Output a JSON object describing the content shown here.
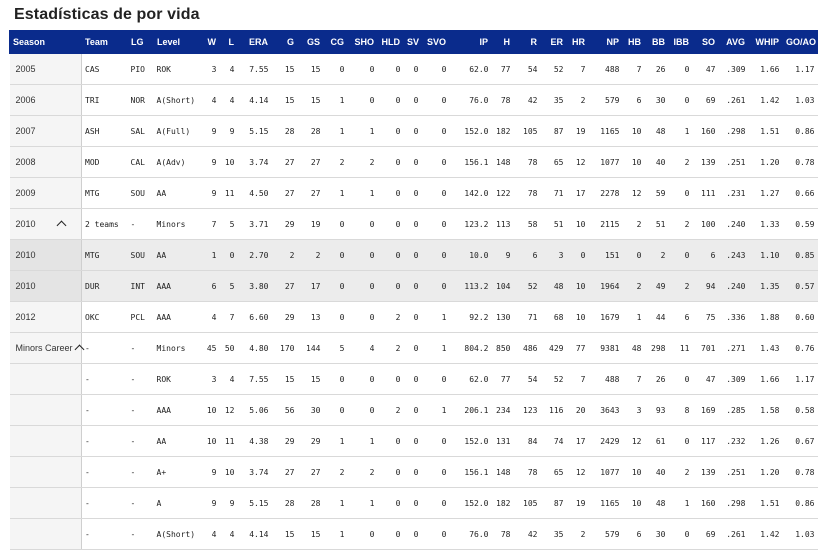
{
  "title": "Estadísticas de por vida",
  "columns": [
    "Season",
    "Team",
    "LG",
    "Level",
    "W",
    "L",
    "ERA",
    "G",
    "GS",
    "CG",
    "SHO",
    "HLD",
    "SV",
    "SVO",
    "IP",
    "H",
    "R",
    "ER",
    "HR",
    "NP",
    "HB",
    "BB",
    "IBB",
    "SO",
    "AVG",
    "WHIP",
    "GO/AO"
  ],
  "rows": [
    {
      "season": "2005",
      "team": "CAS",
      "lg": "PIO",
      "level": "ROK",
      "w": "3",
      "l": "4",
      "era": "7.55",
      "g": "15",
      "gs": "15",
      "cg": "0",
      "sho": "0",
      "hld": "0",
      "sv": "0",
      "svo": "0",
      "ip": "62.0",
      "h": "77",
      "r": "54",
      "er": "52",
      "hr": "7",
      "np": "488",
      "hb": "7",
      "bb": "26",
      "ibb": "0",
      "so": "47",
      "avg": ".309",
      "whip": "1.66",
      "goao": "1.17"
    },
    {
      "season": "2006",
      "team": "TRI",
      "lg": "NOR",
      "level": "A(Short)",
      "w": "4",
      "l": "4",
      "era": "4.14",
      "g": "15",
      "gs": "15",
      "cg": "1",
      "sho": "0",
      "hld": "0",
      "sv": "0",
      "svo": "0",
      "ip": "76.0",
      "h": "78",
      "r": "42",
      "er": "35",
      "hr": "2",
      "np": "579",
      "hb": "6",
      "bb": "30",
      "ibb": "0",
      "so": "69",
      "avg": ".261",
      "whip": "1.42",
      "goao": "1.03"
    },
    {
      "season": "2007",
      "team": "ASH",
      "lg": "SAL",
      "level": "A(Full)",
      "w": "9",
      "l": "9",
      "era": "5.15",
      "g": "28",
      "gs": "28",
      "cg": "1",
      "sho": "1",
      "hld": "0",
      "sv": "0",
      "svo": "0",
      "ip": "152.0",
      "h": "182",
      "r": "105",
      "er": "87",
      "hr": "19",
      "np": "1165",
      "hb": "10",
      "bb": "48",
      "ibb": "1",
      "so": "160",
      "avg": ".298",
      "whip": "1.51",
      "goao": "0.86"
    },
    {
      "season": "2008",
      "team": "MOD",
      "lg": "CAL",
      "level": "A(Adv)",
      "w": "9",
      "l": "10",
      "era": "3.74",
      "g": "27",
      "gs": "27",
      "cg": "2",
      "sho": "2",
      "hld": "0",
      "sv": "0",
      "svo": "0",
      "ip": "156.1",
      "h": "148",
      "r": "78",
      "er": "65",
      "hr": "12",
      "np": "1077",
      "hb": "10",
      "bb": "40",
      "ibb": "2",
      "so": "139",
      "avg": ".251",
      "whip": "1.20",
      "goao": "0.78"
    },
    {
      "season": "2009",
      "team": "MTG",
      "lg": "SOU",
      "level": "AA",
      "w": "9",
      "l": "11",
      "era": "4.50",
      "g": "27",
      "gs": "27",
      "cg": "1",
      "sho": "1",
      "hld": "0",
      "sv": "0",
      "svo": "0",
      "ip": "142.0",
      "h": "122",
      "r": "78",
      "er": "71",
      "hr": "17",
      "np": "2278",
      "hb": "12",
      "bb": "59",
      "ibb": "0",
      "so": "111",
      "avg": ".231",
      "whip": "1.27",
      "goao": "0.66"
    },
    {
      "season": "2010",
      "expand": true,
      "team": "2 teams",
      "lg": "-",
      "level": "Minors",
      "w": "7",
      "l": "5",
      "era": "3.71",
      "g": "29",
      "gs": "19",
      "cg": "0",
      "sho": "0",
      "hld": "0",
      "sv": "0",
      "svo": "0",
      "ip": "123.2",
      "h": "113",
      "r": "58",
      "er": "51",
      "hr": "10",
      "np": "2115",
      "hb": "2",
      "bb": "51",
      "ibb": "2",
      "so": "100",
      "avg": ".240",
      "whip": "1.33",
      "goao": "0.59"
    },
    {
      "season": "2010",
      "shaded": true,
      "team": "MTG",
      "lg": "SOU",
      "level": "AA",
      "w": "1",
      "l": "0",
      "era": "2.70",
      "g": "2",
      "gs": "2",
      "cg": "0",
      "sho": "0",
      "hld": "0",
      "sv": "0",
      "svo": "0",
      "ip": "10.0",
      "h": "9",
      "r": "6",
      "er": "3",
      "hr": "0",
      "np": "151",
      "hb": "0",
      "bb": "2",
      "ibb": "0",
      "so": "6",
      "avg": ".243",
      "whip": "1.10",
      "goao": "0.85"
    },
    {
      "season": "2010",
      "shaded": true,
      "team": "DUR",
      "lg": "INT",
      "level": "AAA",
      "w": "6",
      "l": "5",
      "era": "3.80",
      "g": "27",
      "gs": "17",
      "cg": "0",
      "sho": "0",
      "hld": "0",
      "sv": "0",
      "svo": "0",
      "ip": "113.2",
      "h": "104",
      "r": "52",
      "er": "48",
      "hr": "10",
      "np": "1964",
      "hb": "2",
      "bb": "49",
      "ibb": "2",
      "so": "94",
      "avg": ".240",
      "whip": "1.35",
      "goao": "0.57"
    },
    {
      "season": "2012",
      "team": "OKC",
      "lg": "PCL",
      "level": "AAA",
      "w": "4",
      "l": "7",
      "era": "6.60",
      "g": "29",
      "gs": "13",
      "cg": "0",
      "sho": "0",
      "hld": "2",
      "sv": "0",
      "svo": "1",
      "ip": "92.2",
      "h": "130",
      "r": "71",
      "er": "68",
      "hr": "10",
      "np": "1679",
      "hb": "1",
      "bb": "44",
      "ibb": "6",
      "so": "75",
      "avg": ".336",
      "whip": "1.88",
      "goao": "0.60"
    },
    {
      "season": "Minors Career",
      "expand": true,
      "tight": true,
      "team": "-",
      "lg": "-",
      "level": "Minors",
      "w": "45",
      "l": "50",
      "era": "4.80",
      "g": "170",
      "gs": "144",
      "cg": "5",
      "sho": "4",
      "hld": "2",
      "sv": "0",
      "svo": "1",
      "ip": "804.2",
      "h": "850",
      "r": "486",
      "er": "429",
      "hr": "77",
      "np": "9381",
      "hb": "48",
      "bb": "298",
      "ibb": "11",
      "so": "701",
      "avg": ".271",
      "whip": "1.43",
      "goao": "0.76"
    },
    {
      "season": "",
      "team": "-",
      "lg": "-",
      "level": "ROK",
      "w": "3",
      "l": "4",
      "era": "7.55",
      "g": "15",
      "gs": "15",
      "cg": "0",
      "sho": "0",
      "hld": "0",
      "sv": "0",
      "svo": "0",
      "ip": "62.0",
      "h": "77",
      "r": "54",
      "er": "52",
      "hr": "7",
      "np": "488",
      "hb": "7",
      "bb": "26",
      "ibb": "0",
      "so": "47",
      "avg": ".309",
      "whip": "1.66",
      "goao": "1.17"
    },
    {
      "season": "",
      "team": "-",
      "lg": "-",
      "level": "AAA",
      "w": "10",
      "l": "12",
      "era": "5.06",
      "g": "56",
      "gs": "30",
      "cg": "0",
      "sho": "0",
      "hld": "2",
      "sv": "0",
      "svo": "1",
      "ip": "206.1",
      "h": "234",
      "r": "123",
      "er": "116",
      "hr": "20",
      "np": "3643",
      "hb": "3",
      "bb": "93",
      "ibb": "8",
      "so": "169",
      "avg": ".285",
      "whip": "1.58",
      "goao": "0.58"
    },
    {
      "season": "",
      "team": "-",
      "lg": "-",
      "level": "AA",
      "w": "10",
      "l": "11",
      "era": "4.38",
      "g": "29",
      "gs": "29",
      "cg": "1",
      "sho": "1",
      "hld": "0",
      "sv": "0",
      "svo": "0",
      "ip": "152.0",
      "h": "131",
      "r": "84",
      "er": "74",
      "hr": "17",
      "np": "2429",
      "hb": "12",
      "bb": "61",
      "ibb": "0",
      "so": "117",
      "avg": ".232",
      "whip": "1.26",
      "goao": "0.67"
    },
    {
      "season": "",
      "team": "-",
      "lg": "-",
      "level": "A+",
      "w": "9",
      "l": "10",
      "era": "3.74",
      "g": "27",
      "gs": "27",
      "cg": "2",
      "sho": "2",
      "hld": "0",
      "sv": "0",
      "svo": "0",
      "ip": "156.1",
      "h": "148",
      "r": "78",
      "er": "65",
      "hr": "12",
      "np": "1077",
      "hb": "10",
      "bb": "40",
      "ibb": "2",
      "so": "139",
      "avg": ".251",
      "whip": "1.20",
      "goao": "0.78"
    },
    {
      "season": "",
      "team": "-",
      "lg": "-",
      "level": "A",
      "w": "9",
      "l": "9",
      "era": "5.15",
      "g": "28",
      "gs": "28",
      "cg": "1",
      "sho": "1",
      "hld": "0",
      "sv": "0",
      "svo": "0",
      "ip": "152.0",
      "h": "182",
      "r": "105",
      "er": "87",
      "hr": "19",
      "np": "1165",
      "hb": "10",
      "bb": "48",
      "ibb": "1",
      "so": "160",
      "avg": ".298",
      "whip": "1.51",
      "goao": "0.86"
    },
    {
      "season": "",
      "team": "-",
      "lg": "-",
      "level": "A(Short)",
      "w": "4",
      "l": "4",
      "era": "4.14",
      "g": "15",
      "gs": "15",
      "cg": "1",
      "sho": "0",
      "hld": "0",
      "sv": "0",
      "svo": "0",
      "ip": "76.0",
      "h": "78",
      "r": "42",
      "er": "35",
      "hr": "2",
      "np": "579",
      "hb": "6",
      "bb": "30",
      "ibb": "0",
      "so": "69",
      "avg": ".261",
      "whip": "1.42",
      "goao": "1.03"
    }
  ]
}
